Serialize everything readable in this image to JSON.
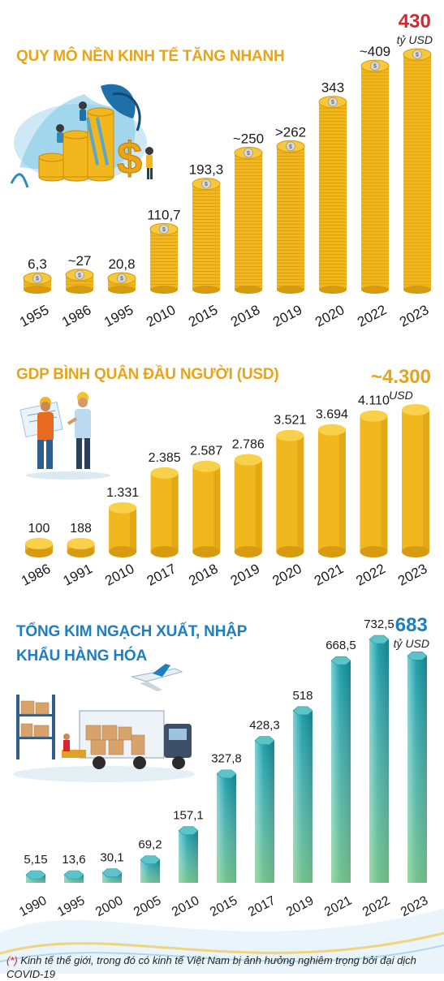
{
  "colors": {
    "title_gold": "#e8a418",
    "title_blue": "#1f7fbe",
    "accent_red": "#d8262f",
    "coin_gold": "#f2b71c",
    "coin_dark": "#d79a10",
    "cylinder_gold": "#f0b81e",
    "teal": "#1fa0aa"
  },
  "sections": [
    {
      "title": "QUY MÔ NỀN KINH TẾ TĂNG NHANH",
      "total": {
        "value": "430",
        "unit": "tỷ USD"
      },
      "illustration_icon": "money-growth-icon"
    },
    {
      "title": "GDP BÌNH QUÂN ĐẦU NGƯỜI (USD)",
      "total": {
        "value": "~4.300",
        "unit": "USD"
      },
      "illustration_icon": "engineers-blueprint-icon"
    },
    {
      "title_line1": "TỔNG KIM NGẠCH XUẤT, NHẬP",
      "title_line2": "KHẨU HÀNG HÓA",
      "total": {
        "value": "683",
        "unit": "tỷ USD"
      },
      "illustration_icon": "logistics-truck-plane-icon"
    }
  ],
  "chart_data": [
    {
      "type": "bar",
      "categories": [
        "1955",
        "1986",
        "1995",
        "2010",
        "2015",
        "2018",
        "2019",
        "2020",
        "2022",
        "2023"
      ],
      "values": [
        6.3,
        27,
        20.8,
        110.7,
        193.3,
        250,
        262,
        343,
        409,
        430
      ],
      "labels": [
        "6,3",
        "~27",
        "20,8",
        "110,7",
        "193,3",
        "~250",
        ">262",
        "343",
        "~409",
        ""
      ],
      "title": "QUY MÔ NỀN KINH TẾ TĂNG NHANH",
      "unit": "tỷ USD",
      "mark": "coin-stack"
    },
    {
      "type": "bar",
      "categories": [
        "1986",
        "1991",
        "2010",
        "2017",
        "2018",
        "2019",
        "2020",
        "2021",
        "2022",
        "2023"
      ],
      "values": [
        100,
        188,
        1331,
        2385,
        2587,
        2786,
        3521,
        3694,
        4110,
        4300
      ],
      "labels": [
        "100",
        "188",
        "1.331",
        "2.385",
        "2.587",
        "2.786",
        "3.521",
        "3.694",
        "4.110",
        ""
      ],
      "title": "GDP BÌNH QUÂN ĐẦU NGƯỜI (USD)",
      "unit": "USD",
      "mark": "cylinder"
    },
    {
      "type": "bar",
      "categories": [
        "1990",
        "1995",
        "2000",
        "2005",
        "2010",
        "2015",
        "2017",
        "2019",
        "2021",
        "2022",
        "2023"
      ],
      "values": [
        5.15,
        13.6,
        30.1,
        69.2,
        157.1,
        327.8,
        428.3,
        518,
        668.5,
        732.5,
        683
      ],
      "labels": [
        "5,15",
        "13,6",
        "30,1",
        "69,2",
        "157,1",
        "327,8",
        "428,3",
        "518",
        "668,5",
        "732,5",
        ""
      ],
      "title": "TỔNG KIM NGẠCH XUẤT, NHẬP KHẨU HÀNG HÓA",
      "unit": "tỷ USD",
      "mark": "octagonal-prism"
    }
  ],
  "footnote": {
    "marker": "(*)",
    "text": " Kinh tế thế giới, trong đó có kinh tế Việt Nam bị ảnh hưởng nghiêm trọng bởi đại dịch COVID-19"
  }
}
